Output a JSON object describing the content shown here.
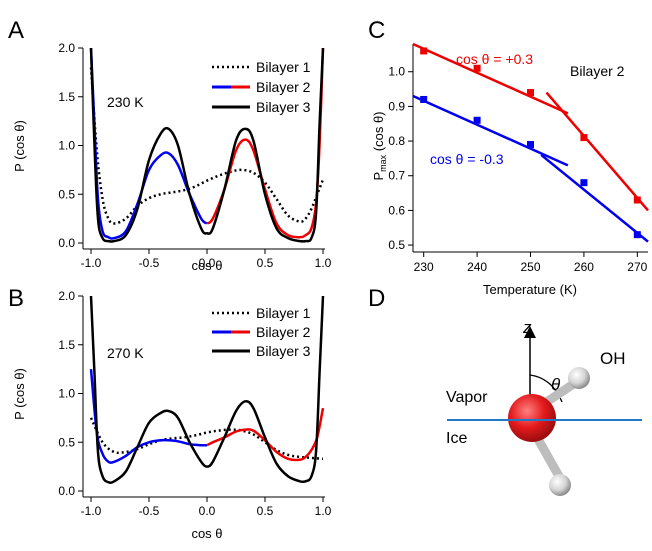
{
  "panel_letters": {
    "A": "A",
    "B": "B",
    "C": "C",
    "D": "D"
  },
  "chart_data": [
    {
      "panel": "A",
      "type": "line",
      "xlabel": "cos θ",
      "ylabel": "P (cos θ)",
      "annotation": "230 K",
      "xlim": [
        -1.0,
        1.0
      ],
      "ylim": [
        0.0,
        2.0
      ],
      "xticks": [
        -1.0,
        -0.5,
        0.0,
        0.5,
        1.0
      ],
      "xtick_labels": [
        "-1.0",
        "-0.5",
        "0.0",
        "0.5",
        "1.0"
      ],
      "yticks": [
        0.0,
        0.5,
        1.0,
        1.5,
        2.0
      ],
      "ytick_labels": [
        "0.0",
        "0.5",
        "1.0",
        "1.5",
        "2.0"
      ],
      "legend": {
        "placement": "top-right",
        "entries": [
          "Bilayer 1",
          "Bilayer 2",
          "Bilayer 3"
        ]
      },
      "series": [
        {
          "name": "Bilayer 1",
          "style": "dotted",
          "color": "#000000",
          "x": [
            -1.0,
            -0.95,
            -0.9,
            -0.85,
            -0.8,
            -0.7,
            -0.6,
            -0.5,
            -0.4,
            -0.3,
            -0.2,
            -0.1,
            0.0,
            0.1,
            0.2,
            0.3,
            0.4,
            0.5,
            0.6,
            0.7,
            0.8,
            0.85,
            0.9,
            0.95,
            1.0
          ],
          "y": [
            1.8,
            0.95,
            0.45,
            0.25,
            0.2,
            0.25,
            0.38,
            0.46,
            0.5,
            0.52,
            0.54,
            0.58,
            0.64,
            0.69,
            0.73,
            0.75,
            0.72,
            0.62,
            0.45,
            0.28,
            0.22,
            0.25,
            0.35,
            0.5,
            0.65
          ]
        },
        {
          "name": "Bilayer 2",
          "style": "solid",
          "colors": [
            "#0000ee",
            "#ee0000"
          ],
          "color_split_x": 0.0,
          "x": [
            -1.0,
            -0.97,
            -0.94,
            -0.9,
            -0.85,
            -0.8,
            -0.7,
            -0.6,
            -0.5,
            -0.4,
            -0.33,
            -0.25,
            -0.15,
            -0.05,
            0.0,
            0.05,
            0.15,
            0.25,
            0.33,
            0.4,
            0.5,
            0.6,
            0.7,
            0.8,
            0.85,
            0.9,
            0.94,
            0.97,
            1.0
          ],
          "y": [
            2.0,
            1.2,
            0.45,
            0.12,
            0.06,
            0.05,
            0.12,
            0.4,
            0.75,
            0.9,
            0.92,
            0.8,
            0.5,
            0.25,
            0.2,
            0.25,
            0.55,
            0.95,
            1.06,
            0.95,
            0.55,
            0.2,
            0.08,
            0.06,
            0.08,
            0.15,
            0.4,
            1.0,
            2.0
          ]
        },
        {
          "name": "Bilayer 3",
          "style": "solid",
          "color": "#000000",
          "x": [
            -1.0,
            -0.97,
            -0.94,
            -0.9,
            -0.85,
            -0.8,
            -0.7,
            -0.6,
            -0.5,
            -0.4,
            -0.33,
            -0.25,
            -0.15,
            -0.05,
            0.0,
            0.05,
            0.15,
            0.25,
            0.33,
            0.4,
            0.5,
            0.6,
            0.7,
            0.8,
            0.85,
            0.9,
            0.94,
            0.97,
            1.0
          ],
          "y": [
            2.0,
            1.0,
            0.25,
            0.05,
            0.02,
            0.02,
            0.08,
            0.35,
            0.85,
            1.12,
            1.17,
            1.0,
            0.5,
            0.15,
            0.1,
            0.15,
            0.55,
            1.05,
            1.17,
            1.05,
            0.5,
            0.15,
            0.05,
            0.02,
            0.02,
            0.05,
            0.3,
            1.2,
            2.0
          ]
        }
      ]
    },
    {
      "panel": "B",
      "type": "line",
      "xlabel": "cos θ",
      "ylabel": "P (cos θ)",
      "annotation": "270 K",
      "xlim": [
        -1.0,
        1.0
      ],
      "ylim": [
        0.0,
        2.0
      ],
      "xticks": [
        -1.0,
        -0.5,
        0.0,
        0.5,
        1.0
      ],
      "xtick_labels": [
        "-1.0",
        "-0.5",
        "0.0",
        "0.5",
        "1.0"
      ],
      "yticks": [
        0.0,
        0.5,
        1.0,
        1.5,
        2.0
      ],
      "ytick_labels": [
        "0.0",
        "0.5",
        "1.0",
        "1.5",
        "2.0"
      ],
      "legend": {
        "placement": "top-right",
        "entries": [
          "Bilayer 1",
          "Bilayer 2",
          "Bilayer 3"
        ]
      },
      "series": [
        {
          "name": "Bilayer 1",
          "style": "dotted",
          "color": "#000000",
          "x": [
            -1.0,
            -0.9,
            -0.8,
            -0.7,
            -0.6,
            -0.5,
            -0.4,
            -0.3,
            -0.2,
            -0.1,
            0.0,
            0.1,
            0.2,
            0.3,
            0.4,
            0.5,
            0.6,
            0.7,
            0.8,
            0.9,
            1.0
          ],
          "y": [
            0.75,
            0.5,
            0.4,
            0.4,
            0.43,
            0.48,
            0.52,
            0.54,
            0.55,
            0.57,
            0.6,
            0.62,
            0.63,
            0.62,
            0.58,
            0.5,
            0.42,
            0.37,
            0.35,
            0.34,
            0.33
          ]
        },
        {
          "name": "Bilayer 2",
          "style": "solid",
          "colors": [
            "#0000ee",
            "#ee0000"
          ],
          "color_split_x": 0.0,
          "x": [
            -1.0,
            -0.95,
            -0.9,
            -0.85,
            -0.8,
            -0.7,
            -0.6,
            -0.5,
            -0.4,
            -0.33,
            -0.25,
            -0.15,
            -0.05,
            0.0,
            0.05,
            0.15,
            0.25,
            0.33,
            0.4,
            0.5,
            0.6,
            0.7,
            0.8,
            0.85,
            0.9,
            0.95,
            1.0
          ],
          "y": [
            1.25,
            0.6,
            0.38,
            0.3,
            0.3,
            0.36,
            0.45,
            0.5,
            0.52,
            0.52,
            0.51,
            0.48,
            0.47,
            0.47,
            0.5,
            0.55,
            0.61,
            0.63,
            0.62,
            0.52,
            0.4,
            0.33,
            0.32,
            0.35,
            0.42,
            0.55,
            0.85
          ]
        },
        {
          "name": "Bilayer 3",
          "style": "solid",
          "color": "#000000",
          "x": [
            -1.0,
            -0.97,
            -0.94,
            -0.9,
            -0.85,
            -0.8,
            -0.7,
            -0.6,
            -0.5,
            -0.4,
            -0.33,
            -0.25,
            -0.15,
            -0.05,
            0.0,
            0.05,
            0.15,
            0.25,
            0.33,
            0.4,
            0.5,
            0.6,
            0.7,
            0.8,
            0.85,
            0.9,
            0.94,
            0.97,
            1.0
          ],
          "y": [
            2.0,
            1.2,
            0.4,
            0.15,
            0.09,
            0.1,
            0.2,
            0.45,
            0.7,
            0.8,
            0.82,
            0.75,
            0.5,
            0.3,
            0.25,
            0.3,
            0.55,
            0.82,
            0.92,
            0.85,
            0.55,
            0.28,
            0.15,
            0.1,
            0.1,
            0.15,
            0.4,
            1.2,
            2.0
          ]
        }
      ]
    },
    {
      "panel": "C",
      "type": "line",
      "xlabel": "Temperature (K)",
      "ylabel_main": "P",
      "ylabel_sub": "max",
      "ylabel_rest": " (cos θ)",
      "annotation": "Bilayer 2",
      "xlim": [
        228,
        272
      ],
      "ylim": [
        0.48,
        1.08
      ],
      "xticks": [
        230,
        240,
        250,
        260,
        270
      ],
      "xtick_labels": [
        "230",
        "240",
        "250",
        "260",
        "270"
      ],
      "yticks": [
        0.5,
        0.6,
        0.7,
        0.8,
        0.9,
        1.0
      ],
      "ytick_labels": [
        "0.5",
        "0.6",
        "0.7",
        "0.8",
        "0.9",
        "1.0"
      ],
      "series": [
        {
          "name": "cos θ = +0.3",
          "color": "#ee0000",
          "x": [
            230,
            240,
            250,
            260,
            270
          ],
          "y": [
            1.06,
            1.01,
            0.94,
            0.81,
            0.63
          ],
          "fits": [
            {
              "x": [
                228,
                257
              ],
              "y": [
                1.08,
                0.88
              ]
            },
            {
              "x": [
                253,
                272
              ],
              "y": [
                0.94,
                0.6
              ]
            }
          ]
        },
        {
          "name": "cos θ = -0.3",
          "color": "#0000ee",
          "x": [
            230,
            240,
            250,
            260,
            270
          ],
          "y": [
            0.92,
            0.86,
            0.79,
            0.68,
            0.53
          ],
          "fits": [
            {
              "x": [
                228,
                257
              ],
              "y": [
                0.93,
                0.73
              ]
            },
            {
              "x": [
                252,
                272
              ],
              "y": [
                0.76,
                0.51
              ]
            }
          ]
        }
      ]
    }
  ],
  "diagram": {
    "z_label": "z",
    "theta_label": "θ",
    "oh_label": "OH",
    "vapor_label": "Vapor",
    "ice_label": "Ice",
    "interface_color": "#1f78c8",
    "oxygen_color": "#e31a1c",
    "hydrogen_color": "#d9d9d9"
  }
}
